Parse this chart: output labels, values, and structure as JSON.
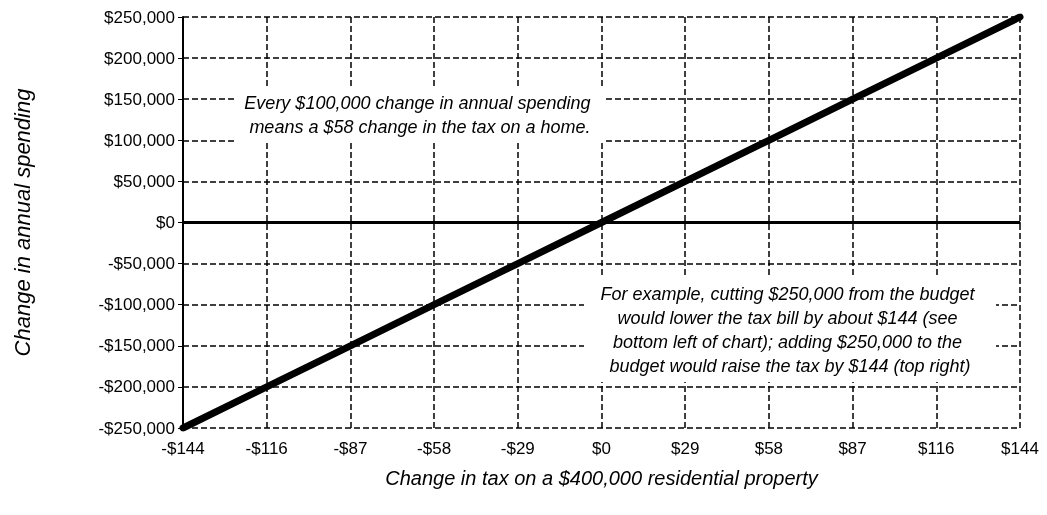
{
  "chart_data": {
    "type": "line",
    "xlabel": "Change in tax on a $400,000 residential property",
    "ylabel": "Change in annual spending",
    "categories": [
      "-$144",
      "-$116",
      "-$87",
      "-$58",
      "-$29",
      "$0",
      "$29",
      "$58",
      "$87",
      "$116",
      "$144"
    ],
    "series": [
      {
        "color": "#000000",
        "values": [
          -250000,
          -200000,
          -150000,
          -100000,
          -50000,
          0,
          50000,
          100000,
          150000,
          200000,
          250000
        ]
      }
    ],
    "ylim": [
      -250000,
      250000
    ],
    "yticks": [
      {
        "value": -250000,
        "label": "-$250,000"
      },
      {
        "value": -200000,
        "label": "-$200,000"
      },
      {
        "value": -150000,
        "label": "-$150,000"
      },
      {
        "value": -100000,
        "label": "-$100,000"
      },
      {
        "value": -50000,
        "label": "-$50,000"
      },
      {
        "value": 0,
        "label": "$0"
      },
      {
        "value": 50000,
        "label": "$50,000"
      },
      {
        "value": 100000,
        "label": "$100,000"
      },
      {
        "value": 150000,
        "label": "$150,000"
      },
      {
        "value": 200000,
        "label": "$200,000"
      },
      {
        "value": 250000,
        "label": "$250,000"
      }
    ],
    "ref_lines": [
      {
        "axis": "y",
        "value": 0,
        "color": "#000000",
        "line_style": "solid"
      }
    ],
    "annotations": [
      "Every $100,000 change in annual spending means a $58 change in the tax on a home.",
      "For example, cutting $250,000 from the budget would lower the tax bill by about $144 (see bottom left of chart); adding $250,000 to the budget would raise the tax by $144 (top right)"
    ],
    "grid": true,
    "marker": "none",
    "line_style": "solid"
  }
}
